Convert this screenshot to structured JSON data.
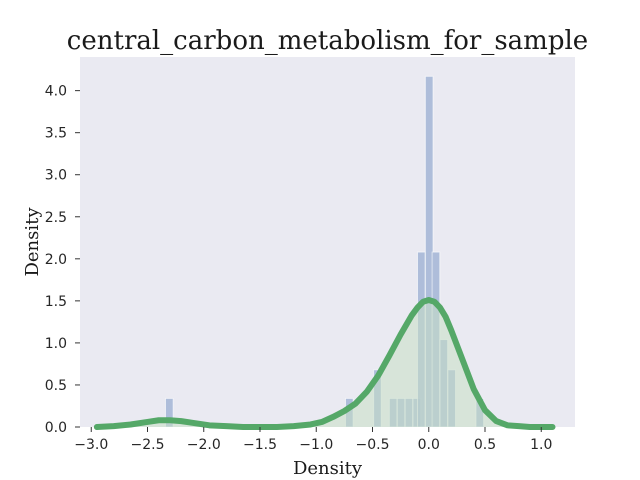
{
  "chart_data": {
    "type": "histogram",
    "title": "central_carbon_metabolism_for_sample",
    "xlabel": "Density",
    "ylabel": "Density",
    "xlim": [
      -3.1,
      1.3
    ],
    "ylim": [
      0,
      4.4
    ],
    "x_ticks": [
      -3.0,
      -2.5,
      -2.0,
      -1.5,
      -1.0,
      -0.5,
      0.0,
      0.5,
      1.0
    ],
    "x_tick_labels": [
      "−3.0",
      "−2.5",
      "−2.0",
      "−1.5",
      "−1.0",
      "−0.5",
      "0.0",
      "0.5",
      "1.0"
    ],
    "y_ticks": [
      0.0,
      0.5,
      1.0,
      1.5,
      2.0,
      2.5,
      3.0,
      3.5,
      4.0
    ],
    "y_tick_labels": [
      "0.0",
      "0.5",
      "1.0",
      "1.5",
      "2.0",
      "2.5",
      "3.0",
      "3.5",
      "4.0"
    ],
    "grid": false,
    "histogram": {
      "bin_width": 0.068,
      "bins": [
        {
          "left": -2.34,
          "height": 0.34
        },
        {
          "left": -0.74,
          "height": 0.34
        },
        {
          "left": -0.49,
          "height": 0.68
        },
        {
          "left": -0.35,
          "height": 0.34
        },
        {
          "left": -0.28,
          "height": 0.34
        },
        {
          "left": -0.21,
          "height": 0.34
        },
        {
          "left": -0.14,
          "height": 0.34
        },
        {
          "left": -0.1,
          "height": 2.08
        },
        {
          "left": -0.03,
          "height": 4.17
        },
        {
          "left": 0.03,
          "height": 2.08
        },
        {
          "left": 0.1,
          "height": 1.04
        },
        {
          "left": 0.17,
          "height": 0.68
        },
        {
          "left": 0.42,
          "height": 0.34
        }
      ]
    },
    "kde": {
      "x": [
        -2.95,
        -2.8,
        -2.65,
        -2.5,
        -2.4,
        -2.3,
        -2.2,
        -2.1,
        -1.95,
        -1.8,
        -1.65,
        -1.5,
        -1.35,
        -1.2,
        -1.05,
        -0.95,
        -0.85,
        -0.75,
        -0.65,
        -0.55,
        -0.45,
        -0.35,
        -0.25,
        -0.15,
        -0.1,
        -0.05,
        0.0,
        0.05,
        0.1,
        0.15,
        0.2,
        0.3,
        0.4,
        0.5,
        0.6,
        0.7,
        0.8,
        0.9,
        1.0,
        1.1
      ],
      "y": [
        0.0,
        0.01,
        0.03,
        0.06,
        0.08,
        0.08,
        0.07,
        0.05,
        0.02,
        0.01,
        0.0,
        0.0,
        0.0,
        0.01,
        0.03,
        0.06,
        0.12,
        0.19,
        0.28,
        0.42,
        0.61,
        0.85,
        1.1,
        1.33,
        1.42,
        1.49,
        1.51,
        1.49,
        1.42,
        1.31,
        1.15,
        0.8,
        0.45,
        0.2,
        0.07,
        0.02,
        0.01,
        0.0,
        0.0,
        0.0
      ]
    },
    "colors": {
      "plot_background": "#eaeaf2",
      "bars": "#a3b5d6",
      "kde_line": "#55a868",
      "kde_fill": "#c6dfc4"
    }
  }
}
